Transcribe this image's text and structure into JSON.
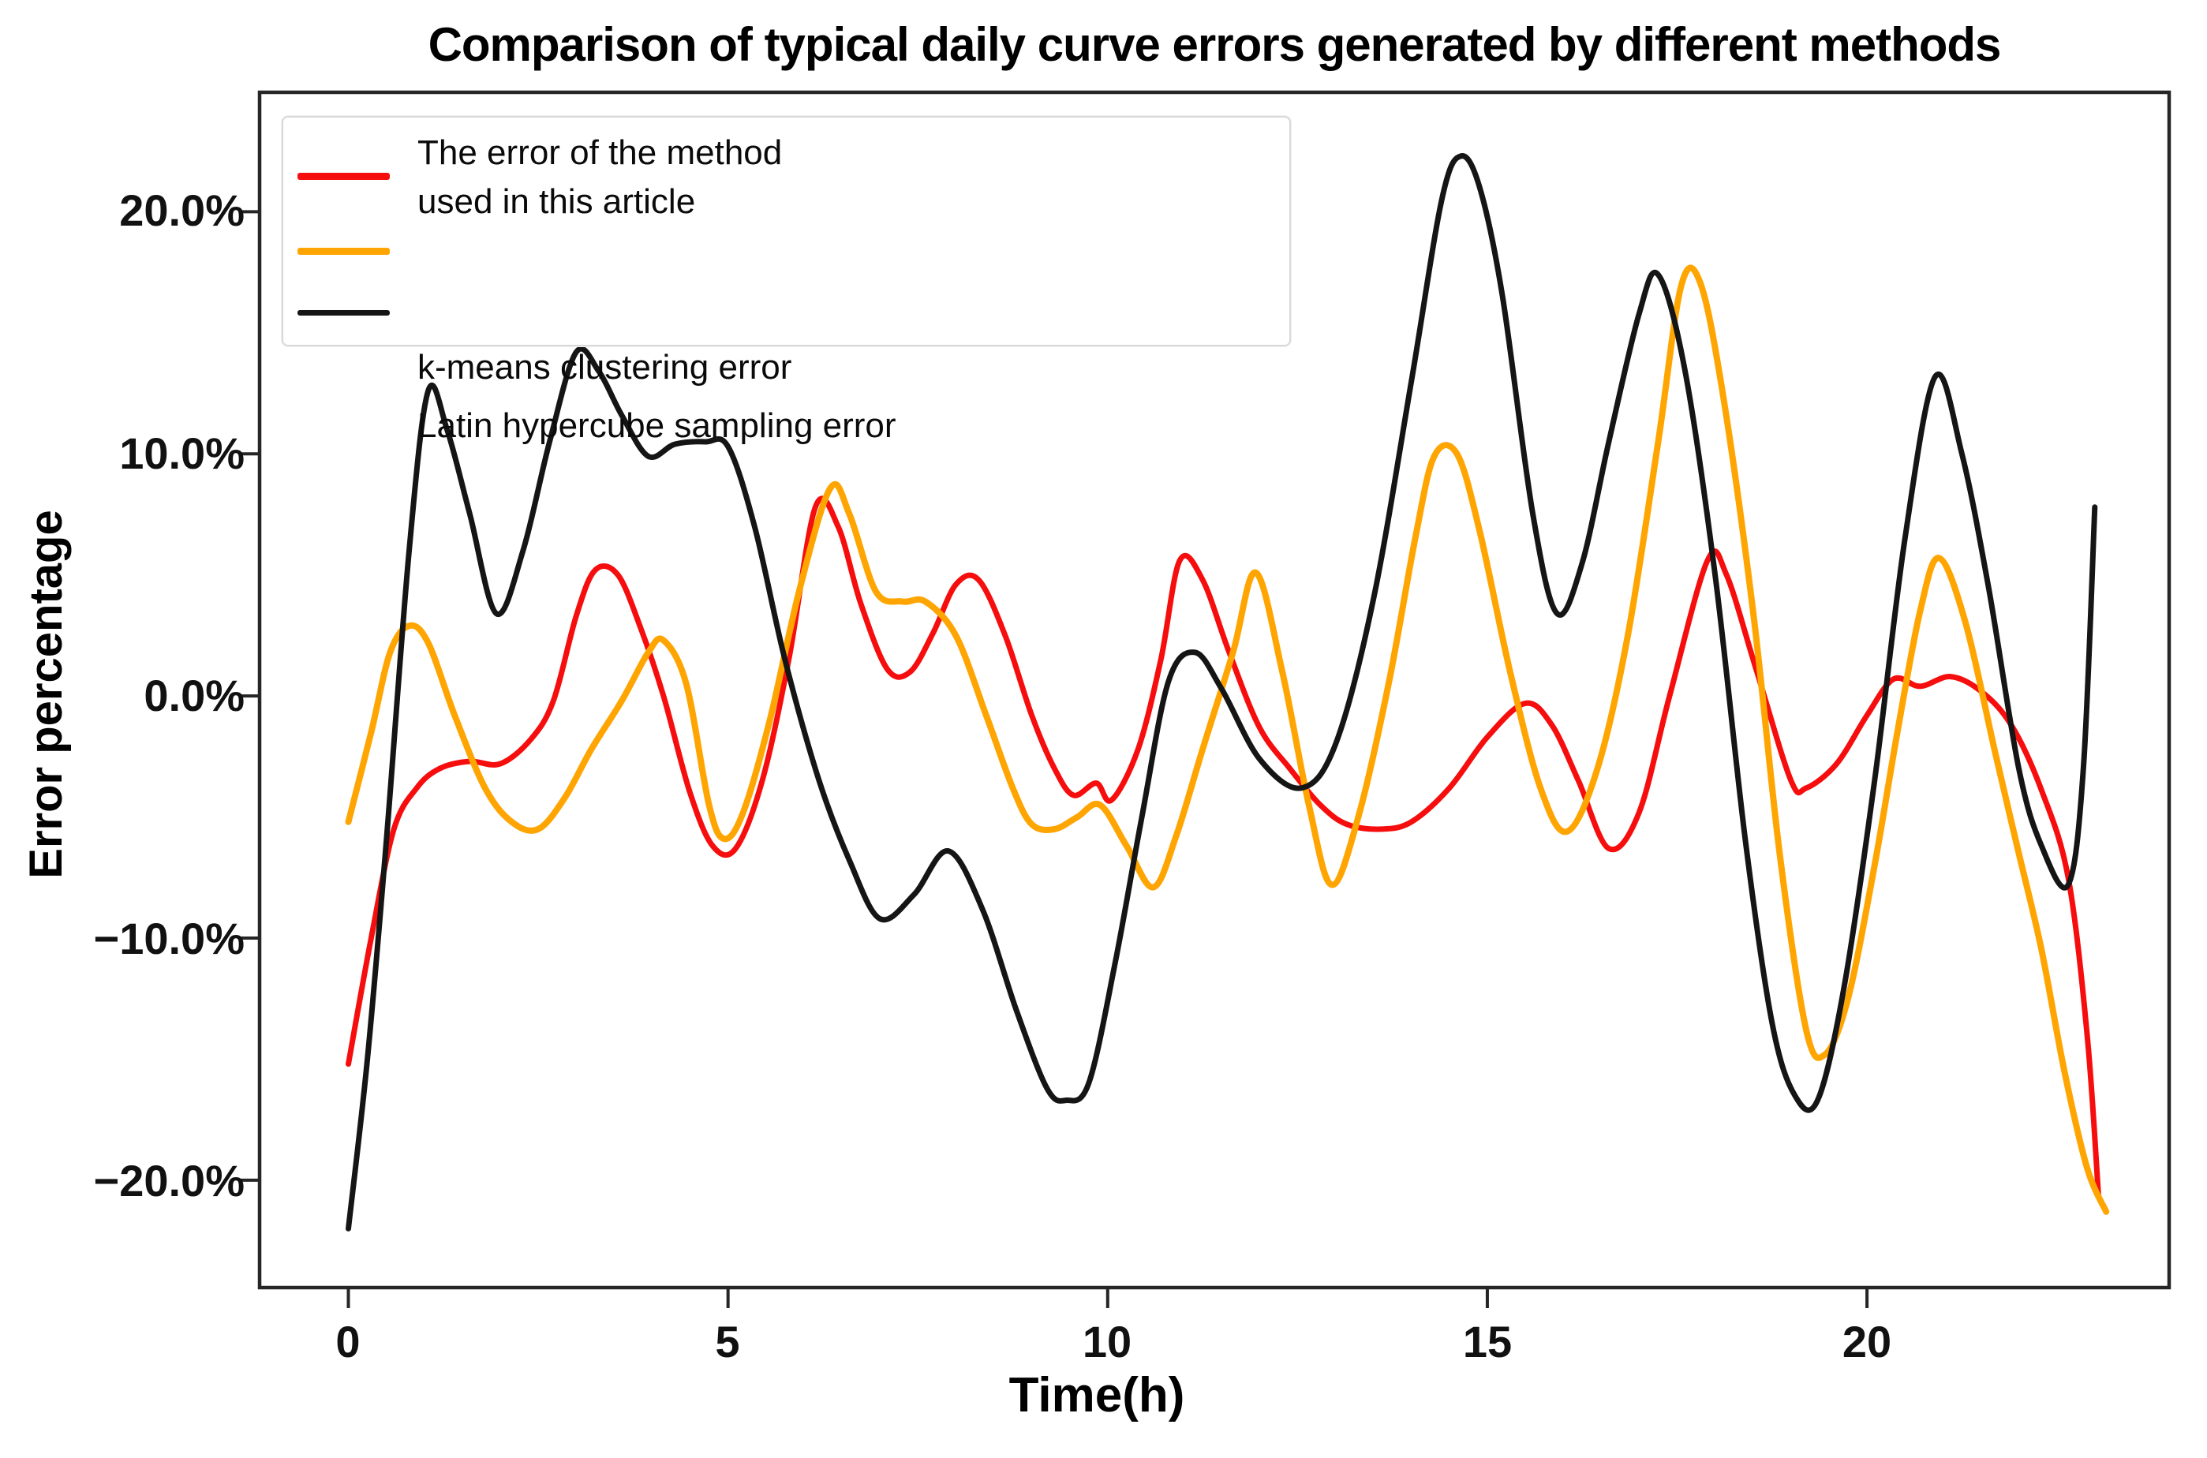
{
  "title": "Comparison of typical daily curve errors generated by different methods",
  "axes": {
    "x_label": "Time(h)",
    "y_label": "Error percentage",
    "x_tick_labels": [
      "0",
      "5",
      "10",
      "15",
      "20"
    ],
    "x_tick_values": [
      0,
      5,
      10,
      15,
      20
    ],
    "y_tick_labels": [
      "20.0%",
      "10.0%",
      "0.0%",
      "−10.0%",
      "−20.0%"
    ],
    "y_tick_values": [
      20,
      10,
      0,
      -10,
      -20
    ]
  },
  "legend": {
    "items": [
      {
        "label_line1": "The error of the method",
        "label_line2": "used in this article",
        "series_key": "article"
      },
      {
        "label_line1": "k-means clustering error",
        "series_key": "kmeans"
      },
      {
        "label_line1": "Latin hypercube sampling error",
        "series_key": "lhs"
      }
    ]
  },
  "colors": {
    "article": "#f60d0d",
    "kmeans": "#ffa502",
    "lhs": "#151515",
    "axis": "#262626",
    "background": "#ffffff"
  },
  "chart_data": {
    "type": "line",
    "title": "Comparison of typical daily curve errors generated by different methods",
    "xlabel": "Time(h)",
    "ylabel": "Error percentage",
    "x_unit": "hours",
    "y_unit": "percent",
    "xlim": [
      -1.19,
      24.0
    ],
    "ylim": [
      -24.5,
      25.0
    ],
    "grid": false,
    "legend_position": "upper-left",
    "series": [
      {
        "name": "The error of the method used in this article",
        "key": "article",
        "color": "#f60d0d",
        "points": [
          [
            0,
            -15.2
          ],
          [
            0.3,
            -10
          ],
          [
            0.6,
            -5.5
          ],
          [
            0.9,
            -3.8
          ],
          [
            1.2,
            -3.0
          ],
          [
            1.6,
            -2.7
          ],
          [
            2.0,
            -2.8
          ],
          [
            2.4,
            -1.8
          ],
          [
            2.7,
            -0.2
          ],
          [
            3.0,
            3.3
          ],
          [
            3.25,
            5.2
          ],
          [
            3.55,
            5.0
          ],
          [
            3.85,
            2.8
          ],
          [
            4.15,
            0
          ],
          [
            4.5,
            -4
          ],
          [
            4.8,
            -6.2
          ],
          [
            5.1,
            -6.3
          ],
          [
            5.45,
            -3.5
          ],
          [
            5.8,
            1.5
          ],
          [
            6.15,
            7.8
          ],
          [
            6.45,
            7.0
          ],
          [
            6.75,
            3.8
          ],
          [
            7.1,
            1.1
          ],
          [
            7.4,
            1.0
          ],
          [
            7.7,
            2.6
          ],
          [
            8.0,
            4.6
          ],
          [
            8.3,
            4.8
          ],
          [
            8.65,
            2.5
          ],
          [
            9.0,
            -0.8
          ],
          [
            9.3,
            -3.0
          ],
          [
            9.55,
            -4.1
          ],
          [
            9.85,
            -3.6
          ],
          [
            10.05,
            -4.3
          ],
          [
            10.4,
            -2.2
          ],
          [
            10.7,
            1.5
          ],
          [
            10.95,
            5.6
          ],
          [
            11.25,
            4.8
          ],
          [
            11.6,
            1.8
          ],
          [
            12.0,
            -1.3
          ],
          [
            12.4,
            -3.0
          ],
          [
            12.8,
            -4.5
          ],
          [
            13.15,
            -5.3
          ],
          [
            13.6,
            -5.5
          ],
          [
            14.0,
            -5.2
          ],
          [
            14.5,
            -3.8
          ],
          [
            15.0,
            -1.7
          ],
          [
            15.5,
            -0.3
          ],
          [
            15.85,
            -1.2
          ],
          [
            16.2,
            -3.5
          ],
          [
            16.6,
            -6.3
          ],
          [
            17.0,
            -4.8
          ],
          [
            17.4,
            0
          ],
          [
            17.9,
            5.6
          ],
          [
            18.15,
            5.0
          ],
          [
            18.55,
            1.0
          ],
          [
            19.0,
            -3.5
          ],
          [
            19.2,
            -3.8
          ],
          [
            19.6,
            -2.8
          ],
          [
            20.0,
            -0.8
          ],
          [
            20.35,
            0.7
          ],
          [
            20.7,
            0.4
          ],
          [
            21.1,
            0.8
          ],
          [
            21.5,
            0.2
          ],
          [
            21.9,
            -1.2
          ],
          [
            22.3,
            -3.9
          ],
          [
            22.65,
            -7.5
          ],
          [
            22.9,
            -14
          ],
          [
            23.05,
            -20.7
          ]
        ]
      },
      {
        "name": "k-means clustering error",
        "key": "kmeans",
        "color": "#ffa502",
        "points": [
          [
            0,
            -5.2
          ],
          [
            0.3,
            -1.5
          ],
          [
            0.55,
            1.8
          ],
          [
            0.8,
            2.9
          ],
          [
            1.05,
            2.2
          ],
          [
            1.4,
            -0.8
          ],
          [
            1.8,
            -3.8
          ],
          [
            2.15,
            -5.2
          ],
          [
            2.5,
            -5.5
          ],
          [
            2.85,
            -4.2
          ],
          [
            3.2,
            -2.2
          ],
          [
            3.6,
            -0.2
          ],
          [
            3.95,
            1.8
          ],
          [
            4.15,
            2.3
          ],
          [
            4.45,
            0.5
          ],
          [
            4.75,
            -4.5
          ],
          [
            4.95,
            -5.9
          ],
          [
            5.2,
            -4.8
          ],
          [
            5.55,
            -1.0
          ],
          [
            5.95,
            4.5
          ],
          [
            6.35,
            8.6
          ],
          [
            6.6,
            7.5
          ],
          [
            6.95,
            4.3
          ],
          [
            7.3,
            3.9
          ],
          [
            7.6,
            3.9
          ],
          [
            8.0,
            2.5
          ],
          [
            8.4,
            -0.8
          ],
          [
            8.75,
            -3.8
          ],
          [
            9.0,
            -5.3
          ],
          [
            9.3,
            -5.5
          ],
          [
            9.6,
            -5.0
          ],
          [
            9.9,
            -4.5
          ],
          [
            10.25,
            -6.2
          ],
          [
            10.6,
            -7.9
          ],
          [
            10.9,
            -5.8
          ],
          [
            11.25,
            -2.2
          ],
          [
            11.65,
            1.8
          ],
          [
            11.95,
            5.1
          ],
          [
            12.3,
            1.0
          ],
          [
            12.65,
            -4.5
          ],
          [
            12.95,
            -7.8
          ],
          [
            13.3,
            -5.0
          ],
          [
            13.7,
            0.5
          ],
          [
            14.05,
            6.5
          ],
          [
            14.3,
            9.9
          ],
          [
            14.6,
            10.0
          ],
          [
            14.9,
            6.8
          ],
          [
            15.3,
            1.0
          ],
          [
            15.7,
            -3.8
          ],
          [
            16.05,
            -5.6
          ],
          [
            16.45,
            -3.0
          ],
          [
            16.85,
            2.5
          ],
          [
            17.25,
            10.5
          ],
          [
            17.55,
            16.9
          ],
          [
            17.8,
            17.1
          ],
          [
            18.1,
            12.5
          ],
          [
            18.5,
            3.5
          ],
          [
            18.85,
            -6.5
          ],
          [
            19.2,
            -13.8
          ],
          [
            19.45,
            -14.8
          ],
          [
            19.75,
            -12.5
          ],
          [
            20.1,
            -7.0
          ],
          [
            20.4,
            -1.5
          ],
          [
            20.7,
            3.5
          ],
          [
            20.95,
            5.7
          ],
          [
            21.3,
            3.0
          ],
          [
            21.7,
            -2.5
          ],
          [
            22.0,
            -6.5
          ],
          [
            22.3,
            -10.5
          ],
          [
            22.6,
            -15.5
          ],
          [
            22.9,
            -19.5
          ],
          [
            23.15,
            -21.3
          ]
        ]
      },
      {
        "name": "Latin hypercube sampling error",
        "key": "lhs",
        "color": "#151515",
        "points": [
          [
            0,
            -22
          ],
          [
            0.25,
            -15
          ],
          [
            0.5,
            -6
          ],
          [
            0.8,
            6
          ],
          [
            1.05,
            12.6
          ],
          [
            1.3,
            11
          ],
          [
            1.6,
            7.5
          ],
          [
            1.95,
            3.4
          ],
          [
            2.3,
            6
          ],
          [
            2.65,
            10.5
          ],
          [
            3.0,
            14.2
          ],
          [
            3.3,
            13.4
          ],
          [
            3.6,
            11.6
          ],
          [
            3.95,
            9.9
          ],
          [
            4.3,
            10.4
          ],
          [
            4.7,
            10.5
          ],
          [
            5.0,
            10.3
          ],
          [
            5.35,
            7.0
          ],
          [
            5.75,
            1.5
          ],
          [
            6.2,
            -3.5
          ],
          [
            6.6,
            -6.8
          ],
          [
            7.0,
            -9.2
          ],
          [
            7.45,
            -8.2
          ],
          [
            7.9,
            -6.4
          ],
          [
            8.35,
            -8.8
          ],
          [
            8.8,
            -13
          ],
          [
            9.2,
            -16.2
          ],
          [
            9.45,
            -16.7
          ],
          [
            9.75,
            -16
          ],
          [
            10.1,
            -11
          ],
          [
            10.45,
            -5
          ],
          [
            10.8,
            0.6
          ],
          [
            11.15,
            1.8
          ],
          [
            11.5,
            0.3
          ],
          [
            12.0,
            -2.6
          ],
          [
            12.55,
            -3.8
          ],
          [
            13.0,
            -2.0
          ],
          [
            13.5,
            4.0
          ],
          [
            14.0,
            13
          ],
          [
            14.4,
            20.5
          ],
          [
            14.65,
            22.3
          ],
          [
            14.9,
            21
          ],
          [
            15.2,
            16.5
          ],
          [
            15.6,
            7.5
          ],
          [
            15.92,
            3.4
          ],
          [
            16.25,
            5.5
          ],
          [
            16.6,
            10.5
          ],
          [
            17.0,
            15.8
          ],
          [
            17.25,
            17.4
          ],
          [
            17.6,
            13.5
          ],
          [
            18.0,
            5.0
          ],
          [
            18.4,
            -6.0
          ],
          [
            18.75,
            -13.5
          ],
          [
            19.05,
            -16.5
          ],
          [
            19.35,
            -16.7
          ],
          [
            19.7,
            -12
          ],
          [
            20.1,
            -3.5
          ],
          [
            20.5,
            6.5
          ],
          [
            20.9,
            13.2
          ],
          [
            21.25,
            10
          ],
          [
            21.6,
            4.5
          ],
          [
            22.0,
            -3.0
          ],
          [
            22.3,
            -6.2
          ],
          [
            22.65,
            -7.8
          ],
          [
            22.85,
            -3.0
          ],
          [
            23.0,
            7.8
          ]
        ]
      }
    ]
  }
}
